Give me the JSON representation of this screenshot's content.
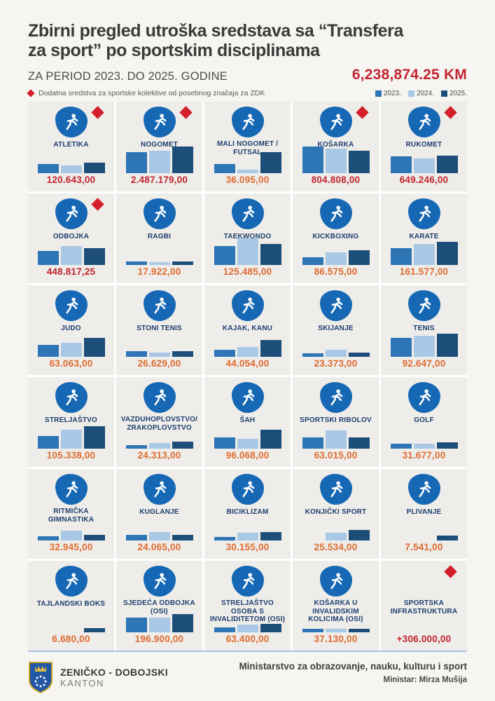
{
  "header": {
    "title_line1": "Zbirni pregled utroška sredstava sa “Transfera",
    "title_line2": "za sport” po sportskim disciplinama",
    "period": "ZA PERIOD 2023. DO 2025. GODINE",
    "total": "6,238,874.25 KM",
    "note": "Dodatna sredstva za sportske kolektive od posebnog značaja za ZDK",
    "accent_red": "#c22631"
  },
  "legend": [
    {
      "label": "2023.",
      "color": "#2e75b6"
    },
    {
      "label": "2024.",
      "color": "#a9c8e6"
    },
    {
      "label": "2025.",
      "color": "#1d4e79"
    }
  ],
  "chart_data": {
    "type": "bar",
    "title": "Zbirni pregled utroška sredstava sa “Transfera za sport” po sportskim disciplinama",
    "subtitle": "ZA PERIOD 2023. DO 2025. GODINE",
    "grand_total": "6,238,874.25 KM",
    "years": [
      "2023.",
      "2024.",
      "2025."
    ],
    "note_special": "Dodatna sredstva za sportske kolektive od posebnog značaja za ZDK",
    "disciplines": [
      {
        "name": "ATLETIKA",
        "value": "120.643,00",
        "special": true,
        "icon": "atletika-icon",
        "bars_rel": [
          0.34,
          0.3,
          0.4
        ]
      },
      {
        "name": "NOGOMET",
        "value": "2.487.179,00",
        "special": true,
        "icon": "nogomet-icon",
        "bars_rel": [
          0.8,
          0.84,
          1.0
        ]
      },
      {
        "name": "MALI NOGOMET / FUTSAL",
        "value": "36.095,00",
        "special": false,
        "icon": "mali-nogomet-icon",
        "bars_rel": [
          0.34,
          0.14,
          0.8
        ]
      },
      {
        "name": "KOŠARKA",
        "value": "804.808,00",
        "special": true,
        "icon": "kosarka-icon",
        "bars_rel": [
          1.0,
          0.92,
          0.85
        ]
      },
      {
        "name": "RUKOMET",
        "value": "649.246,00",
        "special": true,
        "icon": "rukomet-icon",
        "bars_rel": [
          0.62,
          0.55,
          0.66
        ]
      },
      {
        "name": "ODBOJKA",
        "value": "448.817,25",
        "special": true,
        "icon": "odbojka-icon",
        "bars_rel": [
          0.52,
          0.72,
          0.62
        ]
      },
      {
        "name": "RAGBI",
        "value": "17.922,00",
        "special": false,
        "icon": "ragbi-icon",
        "bars_rel": [
          0.13,
          0.1,
          0.13
        ]
      },
      {
        "name": "TAEKWONDO",
        "value": "125.485,00",
        "special": false,
        "icon": "taekwondo-icon",
        "bars_rel": [
          0.72,
          1.0,
          0.8
        ]
      },
      {
        "name": "KICKBOXING",
        "value": "86.575,00",
        "special": false,
        "icon": "kickboxing-icon",
        "bars_rel": [
          0.28,
          0.48,
          0.55
        ]
      },
      {
        "name": "KARATE",
        "value": "161.577,00",
        "special": false,
        "icon": "karate-icon",
        "bars_rel": [
          0.62,
          0.78,
          0.88
        ]
      },
      {
        "name": "JUDO",
        "value": "63.063,00",
        "special": false,
        "icon": "judo-icon",
        "bars_rel": [
          0.45,
          0.52,
          0.72
        ]
      },
      {
        "name": "STONI TENIS",
        "value": "26.629,00",
        "special": false,
        "icon": "stoni-tenis-icon",
        "bars_rel": [
          0.2,
          0.16,
          0.2
        ]
      },
      {
        "name": "KAJAK, KANU",
        "value": "44.054,00",
        "special": false,
        "icon": "kajak-kanu-icon",
        "bars_rel": [
          0.26,
          0.38,
          0.62
        ]
      },
      {
        "name": "SKIJANJE",
        "value": "23.373,00",
        "special": false,
        "icon": "skijanje-icon",
        "bars_rel": [
          0.12,
          0.26,
          0.16
        ]
      },
      {
        "name": "TENIS",
        "value": "92.647,00",
        "special": false,
        "icon": "tenis-icon",
        "bars_rel": [
          0.72,
          0.8,
          0.88
        ]
      },
      {
        "name": "STRELJAŠTVO",
        "value": "105.338,00",
        "special": false,
        "icon": "streljastvo-icon",
        "bars_rel": [
          0.48,
          0.72,
          0.85
        ]
      },
      {
        "name": "VAZDUHOPLOVSTVO/ ZRAKOPLOVSTVO",
        "value": "24.313,00",
        "special": false,
        "icon": "vazduhoplovstvo-icon",
        "bars_rel": [
          0.12,
          0.22,
          0.26
        ]
      },
      {
        "name": "ŠAH",
        "value": "96.068,00",
        "special": false,
        "icon": "sah-icon",
        "bars_rel": [
          0.42,
          0.38,
          0.72
        ]
      },
      {
        "name": "SPORTSKI RIBOLOV",
        "value": "63.015,00",
        "special": false,
        "icon": "sportski-ribolov-icon",
        "bars_rel": [
          0.42,
          0.68,
          0.42
        ]
      },
      {
        "name": "GOLF",
        "value": "31.677,00",
        "special": false,
        "icon": "golf-icon",
        "bars_rel": [
          0.18,
          0.18,
          0.24
        ]
      },
      {
        "name": "RITMIČKA GIMNASTIKA",
        "value": "32.945,00",
        "special": false,
        "icon": "ritmicka-gimnastika-icon",
        "bars_rel": [
          0.16,
          0.36,
          0.22
        ]
      },
      {
        "name": "KUGLANJE",
        "value": "24.065,00",
        "special": false,
        "icon": "kuglanje-icon",
        "bars_rel": [
          0.2,
          0.32,
          0.22
        ]
      },
      {
        "name": "BICIKLIZAM",
        "value": "30.155,00",
        "special": false,
        "icon": "biciklizam-icon",
        "bars_rel": [
          0.13,
          0.3,
          0.32
        ]
      },
      {
        "name": "KONJIČKI SPORT",
        "value": "25.534,00",
        "special": false,
        "icon": "konjicki-sport-icon",
        "bars_rel": [
          0,
          0.3,
          0.4
        ]
      },
      {
        "name": "PLIVANJE",
        "value": "7.541,00",
        "special": false,
        "icon": "plivanje-icon",
        "bars_rel": [
          0,
          0,
          0.18
        ]
      },
      {
        "name": "TAJLANDSKI BOKS",
        "value": "6.680,00",
        "special": false,
        "icon": "tajlandski-boks-icon",
        "bars_rel": [
          0,
          0,
          0.16
        ]
      },
      {
        "name": "SJEDEĆA ODBOJKA (OSI)",
        "value": "196.900,00",
        "special": false,
        "icon": "sjedeca-odbojka-icon",
        "bars_rel": [
          0.55,
          0.55,
          0.68
        ]
      },
      {
        "name": "STRELJAŠTVO OSOBA S INVALIDITETOM (OSI)",
        "value": "63.400,00",
        "special": false,
        "icon": "streljastvo-osi-icon",
        "bars_rel": [
          0.18,
          0.3,
          0.32
        ]
      },
      {
        "name": "KOŠARKA U INVALIDSKIM KOLICIMA (OSI)",
        "value": "37.130,00",
        "special": false,
        "icon": "kosarka-osi-icon",
        "bars_rel": [
          0.13,
          0.13,
          0.13
        ]
      },
      {
        "name": "SPORTSKA INFRASTRUKTURA",
        "value": "+306.000,00",
        "special": true,
        "icon": null,
        "bars_rel": null
      }
    ]
  },
  "footer": {
    "canton_line1": "ZENIČKO - DOBOJSKI",
    "canton_line2": "KANTON",
    "ministry": "Ministarstvo za obrazovanje, nauku, kulturu i sport",
    "minister": "Ministar: Mirza Mušija"
  }
}
